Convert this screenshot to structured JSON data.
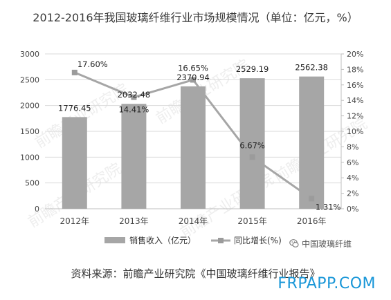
{
  "title": "2012-2016年我国玻璃纤维行业市场规模情况（单位：亿元，%）",
  "chart_data": {
    "type": "bar+line",
    "categories": [
      "2012年",
      "2013年",
      "2014年",
      "2015年",
      "2016年"
    ],
    "series": [
      {
        "name": "销售收入（亿元）",
        "kind": "bar",
        "axis": "left",
        "values": [
          1776.45,
          2032.48,
          2370.94,
          2529.19,
          2562.38
        ],
        "labels": [
          "1776.45",
          "2032.48",
          "2370.94",
          "2529.19",
          "2562.38"
        ],
        "color": "#a6a6a6"
      },
      {
        "name": "同比增长(%)",
        "kind": "line",
        "axis": "right",
        "values": [
          17.6,
          14.41,
          16.65,
          6.67,
          1.31
        ],
        "labels": [
          "17.60%",
          "14.41%",
          "16.65%",
          "6.67%",
          "1.31%"
        ],
        "color": "#a6a6a6"
      }
    ],
    "y_left": {
      "min": 0,
      "max": 3000,
      "ticks": [
        "0",
        "500",
        "1000",
        "1500",
        "2000",
        "2500",
        "3000"
      ]
    },
    "y_right": {
      "min": 0,
      "max": 20,
      "ticks": [
        "0%",
        "2%",
        "4%",
        "6%",
        "8%",
        "10%",
        "12%",
        "14%",
        "16%",
        "18%",
        "20%"
      ]
    },
    "grid": true,
    "legend": "bottom"
  },
  "watermark": "前瞻产业研究院",
  "badge": "中国玻璃纤维",
  "source": "资料来源：前瞻产业研究院《中国玻璃纤维行业报告》",
  "site_watermark": "FRPAPP.COM"
}
